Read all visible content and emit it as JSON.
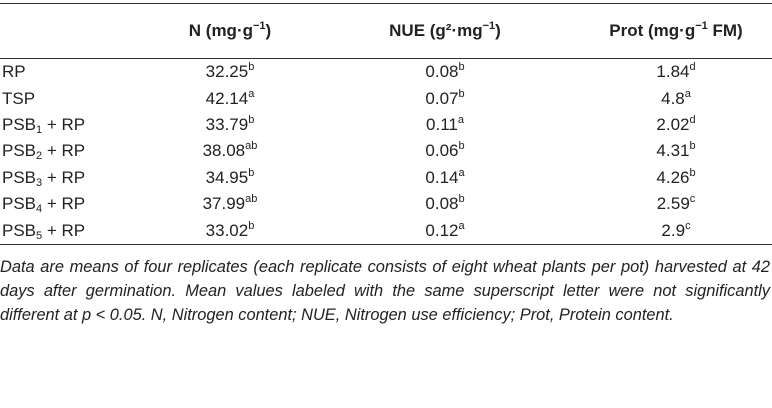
{
  "table": {
    "columns": [
      [
        {
          "t": "N (mg·g"
        },
        {
          "sup": "−1"
        },
        {
          "t": ")"
        }
      ],
      [
        {
          "t": "NUE (g²·mg"
        },
        {
          "sup": "−1"
        },
        {
          "t": ")"
        }
      ],
      [
        {
          "t": "Prot (mg·g"
        },
        {
          "sup": "−1"
        },
        {
          "t": " FM)"
        }
      ]
    ],
    "rows": [
      {
        "label": [
          {
            "t": "RP"
          }
        ],
        "cells": [
          {
            "value": "32.25",
            "sup": "b"
          },
          {
            "value": "0.08",
            "sup": "b"
          },
          {
            "value": "1.84",
            "sup": "d"
          }
        ]
      },
      {
        "label": [
          {
            "t": "TSP"
          }
        ],
        "cells": [
          {
            "value": "42.14",
            "sup": "a"
          },
          {
            "value": "0.07",
            "sup": "b"
          },
          {
            "value": "4.8",
            "sup": "a"
          }
        ]
      },
      {
        "label": [
          {
            "t": "PSB"
          },
          {
            "sub": "1"
          },
          {
            "t": " + RP"
          }
        ],
        "cells": [
          {
            "value": "33.79",
            "sup": "b"
          },
          {
            "value": "0.11",
            "sup": "a"
          },
          {
            "value": "2.02",
            "sup": "d"
          }
        ]
      },
      {
        "label": [
          {
            "t": "PSB"
          },
          {
            "sub": "2"
          },
          {
            "t": " + RP"
          }
        ],
        "cells": [
          {
            "value": "38.08",
            "sup": "ab"
          },
          {
            "value": "0.06",
            "sup": "b"
          },
          {
            "value": "4.31",
            "sup": "b"
          }
        ]
      },
      {
        "label": [
          {
            "t": "PSB"
          },
          {
            "sub": "3"
          },
          {
            "t": " + RP"
          }
        ],
        "cells": [
          {
            "value": "34.95",
            "sup": "b"
          },
          {
            "value": "0.14",
            "sup": "a"
          },
          {
            "value": "4.26",
            "sup": "b"
          }
        ]
      },
      {
        "label": [
          {
            "t": "PSB"
          },
          {
            "sub": "4"
          },
          {
            "t": " + RP"
          }
        ],
        "cells": [
          {
            "value": "37.99",
            "sup": "ab"
          },
          {
            "value": "0.08",
            "sup": "b"
          },
          {
            "value": "2.59",
            "sup": "c"
          }
        ]
      },
      {
        "label": [
          {
            "t": "PSB"
          },
          {
            "sub": "5"
          },
          {
            "t": " + RP"
          }
        ],
        "cells": [
          {
            "value": "33.02",
            "sup": "b"
          },
          {
            "value": "0.12",
            "sup": "a"
          },
          {
            "value": "2.9",
            "sup": "c"
          }
        ]
      }
    ],
    "footnote": "Data are means of four replicates (each replicate consists of eight wheat plants per pot) harvested at 42 days after germination. Mean values labeled with the same superscript letter were not significantly different at p < 0.05. N, Nitrogen content; NUE, Nitrogen use efficiency; Prot, Protein content."
  }
}
